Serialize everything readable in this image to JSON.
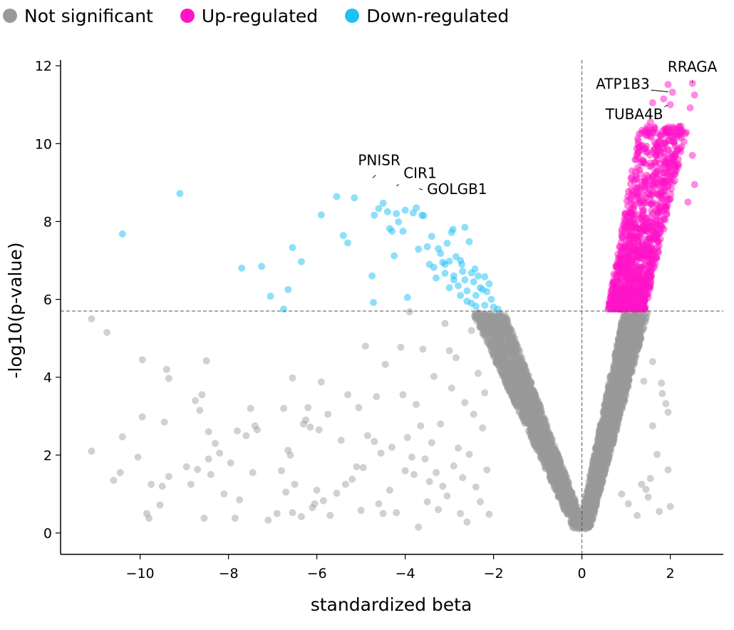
{
  "legend": {
    "items": [
      {
        "label": "Not significant",
        "color": "#999999"
      },
      {
        "label": "Up-regulated",
        "color": "#ff14c8"
      },
      {
        "label": "Down-regulated",
        "color": "#1ec0f5"
      }
    ]
  },
  "chart_data": {
    "type": "scatter",
    "title": "",
    "xlabel": "standardized beta",
    "ylabel": "-log10(p-value)",
    "xlim": [
      -11.8,
      3.2
    ],
    "ylim": [
      -0.55,
      12.15
    ],
    "xticks": [
      -10,
      -8,
      -6,
      -4,
      -2,
      0,
      2
    ],
    "yticks": [
      0,
      2,
      4,
      6,
      8,
      10,
      12
    ],
    "grid": false,
    "legend_position": "top-left",
    "significance_threshold_y": 5.7,
    "vertical_line_x": 0,
    "colors": {
      "not_significant": "#999999",
      "up": "#ff14c8",
      "down": "#1ec0f5"
    },
    "down_points": [
      [
        -10.4,
        7.68
      ],
      [
        -9.1,
        8.72
      ],
      [
        -7.7,
        6.8
      ],
      [
        -7.25,
        6.85
      ],
      [
        -7.05,
        6.08
      ],
      [
        -6.75,
        5.75
      ],
      [
        -6.65,
        6.25
      ],
      [
        -6.55,
        7.33
      ],
      [
        -6.35,
        6.97
      ],
      [
        -5.9,
        8.17
      ],
      [
        -5.55,
        8.64
      ],
      [
        -5.4,
        7.64
      ],
      [
        -5.3,
        7.45
      ],
      [
        -5.15,
        8.61
      ],
      [
        -4.75,
        6.6
      ],
      [
        -4.72,
        5.92
      ],
      [
        -4.7,
        8.16
      ],
      [
        -4.6,
        8.33
      ],
      [
        -4.5,
        8.47
      ],
      [
        -4.4,
        8.25
      ],
      [
        -4.35,
        7.82
      ],
      [
        -4.3,
        7.75
      ],
      [
        -4.25,
        7.12
      ],
      [
        -4.2,
        8.2
      ],
      [
        -4.15,
        7.99
      ],
      [
        -4.05,
        7.75
      ],
      [
        -4.0,
        8.29
      ],
      [
        -3.95,
        6.05
      ],
      [
        -3.82,
        8.22
      ],
      [
        -3.75,
        8.35
      ],
      [
        -3.7,
        7.29
      ],
      [
        -3.62,
        8.16
      ],
      [
        -3.58,
        8.15
      ],
      [
        -3.5,
        7.35
      ],
      [
        -3.45,
        6.9
      ],
      [
        -3.4,
        7.62
      ],
      [
        -3.35,
        6.82
      ],
      [
        -3.3,
        6.55
      ],
      [
        -3.25,
        7.3
      ],
      [
        -3.2,
        7.18
      ],
      [
        -3.15,
        6.95
      ],
      [
        -3.1,
        6.67
      ],
      [
        -3.05,
        7.44
      ],
      [
        -3.0,
        6.98
      ],
      [
        -2.95,
        7.72
      ],
      [
        -2.92,
        7.8
      ],
      [
        -2.9,
        6.6
      ],
      [
        -2.85,
        7.1
      ],
      [
        -2.8,
        6.35
      ],
      [
        -2.75,
        7.0
      ],
      [
        -2.72,
        6.9
      ],
      [
        -2.7,
        6.72
      ],
      [
        -2.65,
        7.85
      ],
      [
        -2.6,
        6.22
      ],
      [
        -2.55,
        7.48
      ],
      [
        -2.5,
        6.68
      ],
      [
        -2.45,
        6.45
      ],
      [
        -2.42,
        6.78
      ],
      [
        -2.4,
        6.1
      ],
      [
        -2.35,
        6.6
      ],
      [
        -2.3,
        6.3
      ],
      [
        -2.25,
        6.25
      ],
      [
        -2.2,
        6.58
      ],
      [
        -2.15,
        6.2
      ],
      [
        -2.1,
        6.4
      ],
      [
        -2.05,
        6.0
      ],
      [
        -2.0,
        5.8
      ],
      [
        -1.9,
        5.75
      ],
      [
        -2.5,
        5.9
      ],
      [
        -2.6,
        5.95
      ],
      [
        -2.75,
        6.1
      ],
      [
        -3.0,
        6.3
      ],
      [
        -2.2,
        5.85
      ],
      [
        -2.4,
        5.82
      ],
      [
        -2.9,
        6.5
      ],
      [
        -3.1,
        6.9
      ],
      [
        -2.65,
        6.5
      ]
    ],
    "ns_outliers": [
      [
        -11.1,
        5.5
      ],
      [
        -10.75,
        5.15
      ],
      [
        -11.1,
        2.1
      ],
      [
        -10.6,
        1.35
      ],
      [
        -10.45,
        1.55
      ],
      [
        -10.4,
        2.47
      ],
      [
        -10.05,
        1.95
      ],
      [
        -9.95,
        4.45
      ],
      [
        -9.95,
        2.98
      ],
      [
        -9.85,
        0.5
      ],
      [
        -9.8,
        0.38
      ],
      [
        -9.75,
        1.25
      ],
      [
        -9.55,
        0.72
      ],
      [
        -9.5,
        1.2
      ],
      [
        -9.45,
        2.85
      ],
      [
        -9.4,
        4.2
      ],
      [
        -9.35,
        3.97
      ],
      [
        -9.35,
        1.45
      ],
      [
        -8.95,
        1.7
      ],
      [
        -8.85,
        1.25
      ],
      [
        -8.75,
        3.4
      ],
      [
        -8.7,
        1.63
      ],
      [
        -8.65,
        3.15
      ],
      [
        -8.6,
        3.55
      ],
      [
        -8.55,
        0.38
      ],
      [
        -8.5,
        4.42
      ],
      [
        -8.45,
        2.6
      ],
      [
        -8.45,
        1.9
      ],
      [
        -8.4,
        1.5
      ],
      [
        -8.3,
        2.3
      ],
      [
        -8.2,
        2.05
      ],
      [
        -8.1,
        1.0
      ],
      [
        -7.95,
        1.8
      ],
      [
        -7.85,
        0.38
      ],
      [
        -7.8,
        2.62
      ],
      [
        -7.75,
        0.85
      ],
      [
        -7.6,
        2.5
      ],
      [
        -7.5,
        3.2
      ],
      [
        -7.45,
        1.55
      ],
      [
        -7.4,
        2.75
      ],
      [
        -7.35,
        2.65
      ],
      [
        -7.1,
        0.33
      ],
      [
        -6.9,
        0.5
      ],
      [
        -6.8,
        1.6
      ],
      [
        -6.75,
        3.2
      ],
      [
        -6.7,
        1.05
      ],
      [
        -6.65,
        2.12
      ],
      [
        -6.6,
        2.0
      ],
      [
        -6.55,
        3.98
      ],
      [
        -6.55,
        0.52
      ],
      [
        -6.5,
        1.25
      ],
      [
        -6.35,
        0.42
      ],
      [
        -6.3,
        2.8
      ],
      [
        -6.25,
        2.9
      ],
      [
        -6.2,
        3.22
      ],
      [
        -6.15,
        2.72
      ],
      [
        -6.1,
        0.65
      ],
      [
        -6.05,
        0.75
      ],
      [
        -6.0,
        1.1
      ],
      [
        -5.95,
        2.65
      ],
      [
        -5.9,
        3.88
      ],
      [
        -5.85,
        0.83
      ],
      [
        -5.75,
        3.05
      ],
      [
        -5.7,
        0.45
      ],
      [
        -5.55,
        1.02
      ],
      [
        -5.45,
        2.38
      ],
      [
        -5.35,
        1.25
      ],
      [
        -5.3,
        3.55
      ],
      [
        -5.2,
        1.38
      ],
      [
        -5.1,
        1.7
      ],
      [
        -5.05,
        3.22
      ],
      [
        -5.0,
        0.58
      ],
      [
        -4.95,
        1.68
      ],
      [
        -4.9,
        4.8
      ],
      [
        -4.85,
        2.5
      ],
      [
        -4.7,
        2.35
      ],
      [
        -4.65,
        3.5
      ],
      [
        -4.6,
        0.75
      ],
      [
        -4.55,
        2.05
      ],
      [
        -4.5,
        0.5
      ],
      [
        -4.45,
        4.33
      ],
      [
        -4.35,
        1.1
      ],
      [
        -4.3,
        2.2
      ],
      [
        -4.2,
        0.52
      ],
      [
        -4.1,
        4.77
      ],
      [
        -4.05,
        3.55
      ],
      [
        -4.0,
        1.6
      ],
      [
        -3.95,
        2.45
      ],
      [
        -3.9,
        5.68
      ],
      [
        -3.85,
        1.95
      ],
      [
        -3.8,
        1.5
      ],
      [
        -3.75,
        3.3
      ],
      [
        -3.7,
        0.15
      ],
      [
        -3.65,
        2.75
      ],
      [
        -3.6,
        4.72
      ],
      [
        -3.55,
        1.9
      ],
      [
        -3.5,
        0.8
      ],
      [
        -3.45,
        1.32
      ],
      [
        -3.4,
        2.32
      ],
      [
        -3.35,
        4.02
      ],
      [
        -3.3,
        1.55
      ],
      [
        -3.25,
        0.6
      ],
      [
        -3.2,
        2.8
      ],
      [
        -3.15,
        1.2
      ],
      [
        -3.1,
        5.38
      ],
      [
        -3.05,
        0.95
      ],
      [
        -3.0,
        4.68
      ],
      [
        -2.95,
        3.72
      ],
      [
        -2.9,
        1.72
      ],
      [
        -2.85,
        4.5
      ],
      [
        -2.8,
        2.18
      ],
      [
        -2.75,
        0.5
      ],
      [
        -2.7,
        1.42
      ],
      [
        -2.65,
        3.35
      ],
      [
        -2.6,
        0.28
      ],
      [
        -2.55,
        2.02
      ],
      [
        -2.5,
        5.2
      ],
      [
        -2.45,
        3.05
      ],
      [
        -2.4,
        1.18
      ],
      [
        -2.35,
        4.1
      ],
      [
        -2.3,
        0.8
      ],
      [
        -2.25,
        2.7
      ],
      [
        -2.2,
        3.6
      ],
      [
        -2.15,
        1.62
      ],
      [
        -2.1,
        0.48
      ]
    ],
    "up_points": [
      [
        1.95,
        11.52
      ],
      [
        2.05,
        11.32
      ],
      [
        2.5,
        11.55
      ],
      [
        2.55,
        11.25
      ],
      [
        2.45,
        10.92
      ],
      [
        2.0,
        11.0
      ],
      [
        1.85,
        11.15
      ],
      [
        1.6,
        11.05
      ],
      [
        1.55,
        10.55
      ],
      [
        2.5,
        9.7
      ],
      [
        2.55,
        8.95
      ],
      [
        2.4,
        8.5
      ]
    ],
    "ns_right_outliers": [
      [
        1.6,
        4.4
      ],
      [
        1.8,
        3.85
      ],
      [
        1.9,
        3.32
      ],
      [
        1.95,
        3.1
      ],
      [
        2.0,
        0.68
      ],
      [
        1.75,
        0.55
      ],
      [
        1.7,
        2.02
      ],
      [
        1.55,
        1.4
      ],
      [
        1.45,
        1.12
      ],
      [
        1.35,
        1.25
      ],
      [
        1.25,
        0.45
      ],
      [
        1.5,
        0.92
      ],
      [
        0.9,
        1.0
      ],
      [
        1.05,
        0.75
      ],
      [
        1.95,
        1.62
      ],
      [
        1.82,
        3.58
      ],
      [
        1.6,
        2.75
      ],
      [
        1.4,
        3.9
      ]
    ],
    "annotations": [
      {
        "text": "RRAGA",
        "x": 2.5,
        "y": 11.55
      },
      {
        "text": "ATP1B3",
        "x": 2.05,
        "y": 11.32
      },
      {
        "text": "TUBA4B",
        "x": 1.95,
        "y": 11.0
      },
      {
        "text": "PNISR",
        "x": -4.75,
        "y": 9.1
      },
      {
        "text": "CIR1",
        "x": -4.2,
        "y": 8.9
      },
      {
        "text": "GOLGB1",
        "x": -3.7,
        "y": 8.85
      }
    ]
  }
}
